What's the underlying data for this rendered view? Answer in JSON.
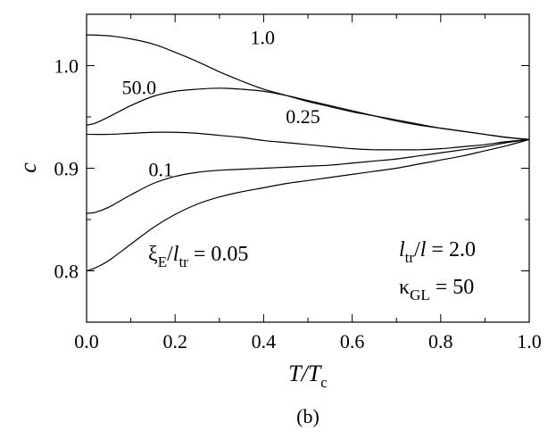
{
  "chart_data": {
    "type": "line",
    "caption": "(b)",
    "xlabel": {
      "main": "T/T",
      "sub": "c"
    },
    "ylabel": "c",
    "xlim": [
      0.0,
      1.0
    ],
    "ylim": [
      0.75,
      1.05
    ],
    "x_ticks": [
      "0.0",
      "0.2",
      "0.4",
      "0.6",
      "0.8",
      "1.0"
    ],
    "y_ticks": [
      "0.8",
      "0.9",
      "1.0"
    ],
    "grid": false,
    "series": [
      {
        "name": "1.0",
        "points": [
          [
            0.0,
            1.03
          ],
          [
            0.05,
            1.029
          ],
          [
            0.1,
            1.026
          ],
          [
            0.15,
            1.021
          ],
          [
            0.2,
            1.013
          ],
          [
            0.25,
            1.004
          ],
          [
            0.3,
            0.994
          ],
          [
            0.35,
            0.985
          ],
          [
            0.4,
            0.977
          ],
          [
            0.45,
            0.971
          ],
          [
            0.5,
            0.965
          ],
          [
            0.55,
            0.96
          ],
          [
            0.6,
            0.955
          ],
          [
            0.65,
            0.951
          ],
          [
            0.7,
            0.947
          ],
          [
            0.75,
            0.943
          ],
          [
            0.8,
            0.939
          ],
          [
            0.85,
            0.936
          ],
          [
            0.9,
            0.933
          ],
          [
            0.95,
            0.93
          ],
          [
            1.0,
            0.928
          ]
        ]
      },
      {
        "name": "50.0",
        "points": [
          [
            0.0,
            0.942
          ],
          [
            0.02,
            0.944
          ],
          [
            0.05,
            0.95
          ],
          [
            0.1,
            0.961
          ],
          [
            0.15,
            0.97
          ],
          [
            0.2,
            0.975
          ],
          [
            0.25,
            0.977
          ],
          [
            0.3,
            0.978
          ],
          [
            0.35,
            0.977
          ],
          [
            0.4,
            0.975
          ],
          [
            0.45,
            0.971
          ],
          [
            0.5,
            0.966
          ],
          [
            0.55,
            0.961
          ],
          [
            0.6,
            0.956
          ],
          [
            0.65,
            0.951
          ],
          [
            0.7,
            0.946
          ],
          [
            0.75,
            0.942
          ],
          [
            0.8,
            0.939
          ],
          [
            0.85,
            0.936
          ],
          [
            0.9,
            0.933
          ],
          [
            0.95,
            0.93
          ],
          [
            1.0,
            0.928
          ]
        ]
      },
      {
        "name": "0.25",
        "points": [
          [
            0.0,
            0.933
          ],
          [
            0.05,
            0.933
          ],
          [
            0.1,
            0.934
          ],
          [
            0.15,
            0.935
          ],
          [
            0.2,
            0.935
          ],
          [
            0.25,
            0.934
          ],
          [
            0.3,
            0.932
          ],
          [
            0.35,
            0.93
          ],
          [
            0.4,
            0.927
          ],
          [
            0.45,
            0.925
          ],
          [
            0.5,
            0.923
          ],
          [
            0.55,
            0.921
          ],
          [
            0.6,
            0.919
          ],
          [
            0.65,
            0.918
          ],
          [
            0.7,
            0.918
          ],
          [
            0.75,
            0.918
          ],
          [
            0.8,
            0.919
          ],
          [
            0.85,
            0.921
          ],
          [
            0.9,
            0.923
          ],
          [
            0.95,
            0.926
          ],
          [
            1.0,
            0.928
          ]
        ]
      },
      {
        "name": "0.1",
        "points": [
          [
            0.0,
            0.856
          ],
          [
            0.02,
            0.857
          ],
          [
            0.05,
            0.862
          ],
          [
            0.1,
            0.874
          ],
          [
            0.15,
            0.885
          ],
          [
            0.2,
            0.892
          ],
          [
            0.25,
            0.896
          ],
          [
            0.3,
            0.898
          ],
          [
            0.35,
            0.899
          ],
          [
            0.4,
            0.9
          ],
          [
            0.45,
            0.901
          ],
          [
            0.5,
            0.902
          ],
          [
            0.55,
            0.903
          ],
          [
            0.6,
            0.905
          ],
          [
            0.65,
            0.907
          ],
          [
            0.7,
            0.909
          ],
          [
            0.75,
            0.912
          ],
          [
            0.8,
            0.915
          ],
          [
            0.85,
            0.918
          ],
          [
            0.9,
            0.921
          ],
          [
            0.95,
            0.925
          ],
          [
            1.0,
            0.928
          ]
        ]
      },
      {
        "name": "ξE/ltr = 0.05",
        "points": [
          [
            0.0,
            0.8
          ],
          [
            0.02,
            0.803
          ],
          [
            0.05,
            0.81
          ],
          [
            0.1,
            0.826
          ],
          [
            0.15,
            0.842
          ],
          [
            0.2,
            0.855
          ],
          [
            0.25,
            0.865
          ],
          [
            0.3,
            0.872
          ],
          [
            0.35,
            0.877
          ],
          [
            0.4,
            0.881
          ],
          [
            0.45,
            0.885
          ],
          [
            0.5,
            0.888
          ],
          [
            0.55,
            0.891
          ],
          [
            0.6,
            0.894
          ],
          [
            0.65,
            0.897
          ],
          [
            0.7,
            0.9
          ],
          [
            0.75,
            0.904
          ],
          [
            0.8,
            0.908
          ],
          [
            0.85,
            0.912
          ],
          [
            0.9,
            0.917
          ],
          [
            0.95,
            0.922
          ],
          [
            1.0,
            0.928
          ]
        ]
      }
    ],
    "curve_labels": [
      {
        "text": "1.0",
        "x": 0.37,
        "y": 1.021
      },
      {
        "text": "50.0",
        "x": 0.08,
        "y": 0.972
      },
      {
        "text": "0.25",
        "x": 0.45,
        "y": 0.944
      },
      {
        "text": "0.1",
        "x": 0.14,
        "y": 0.892
      }
    ],
    "annotations": {
      "xi": {
        "sym": "ξ",
        "sub1": "E",
        "slash": "/",
        "l": "l",
        "sub2": "tr",
        "value": " = 0.05"
      },
      "ltr_ratio": {
        "l1": "l",
        "sub": "tr",
        "mid": "/",
        "l2": "l",
        "value": " = 2.0"
      },
      "kappa": {
        "sym": "κ",
        "sub": "GL",
        "value": " = 50"
      }
    }
  }
}
